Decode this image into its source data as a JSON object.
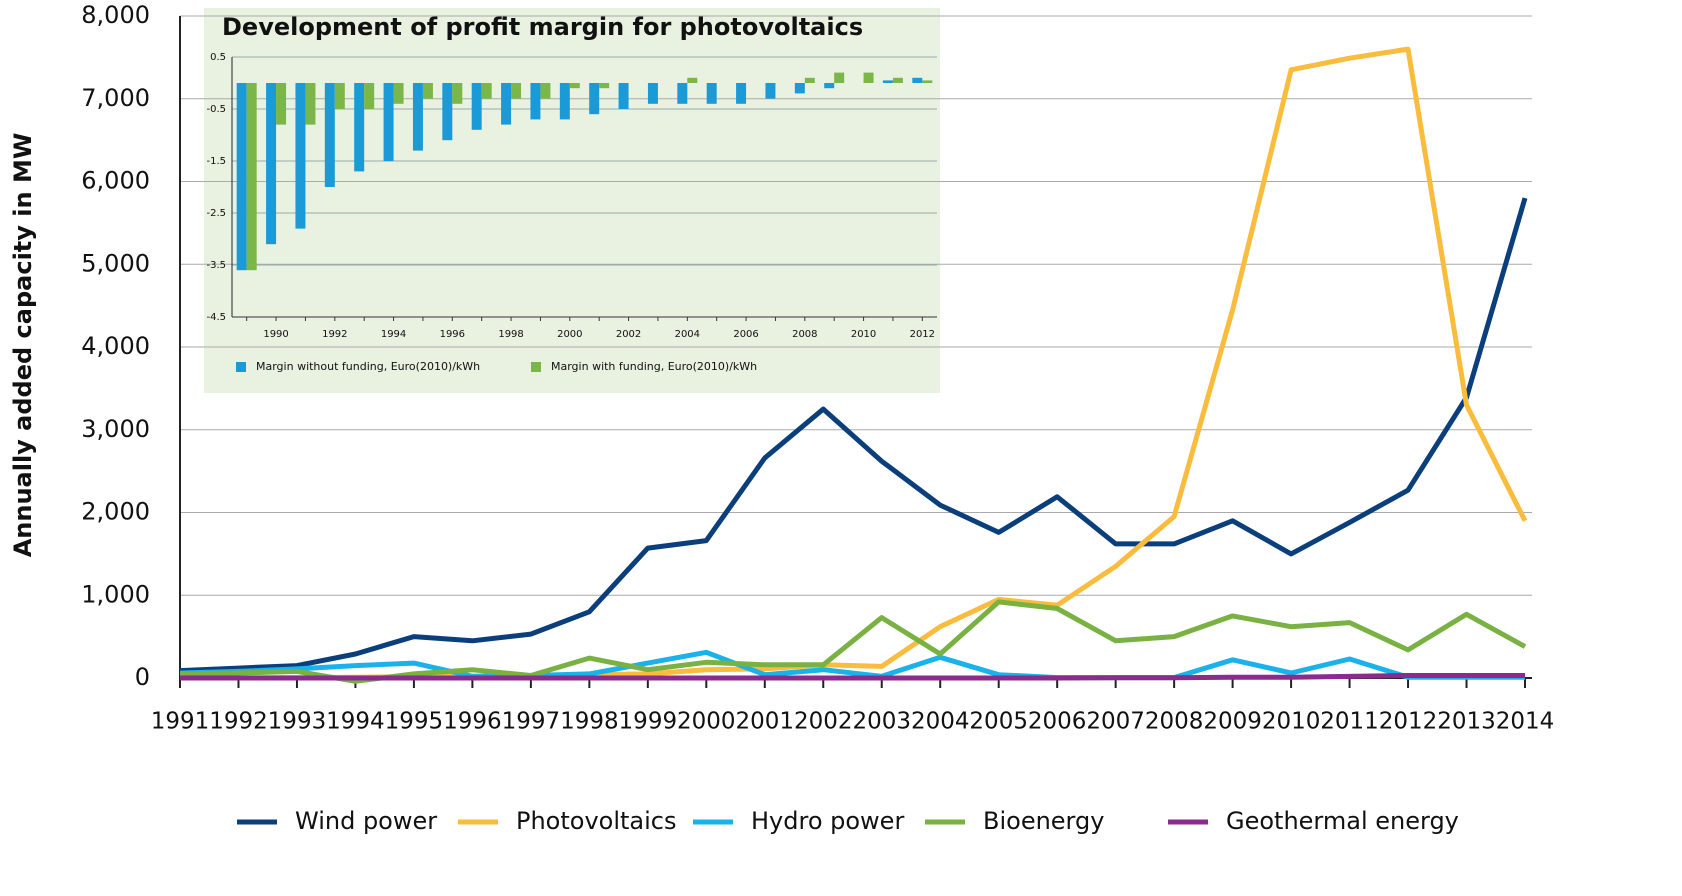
{
  "chart_data": [
    {
      "type": "line",
      "y_label": "Annually added capacity in MW",
      "categories": [
        "1991",
        "1992",
        "1993",
        "1994",
        "1995",
        "1996",
        "1997",
        "1998",
        "1999",
        "2000",
        "2001",
        "2002",
        "2003",
        "2004",
        "2005",
        "2006",
        "2007",
        "2008",
        "2009",
        "2010",
        "2011",
        "2012",
        "2013",
        "2014"
      ],
      "series": [
        {
          "name": "Wind power",
          "color": "#0b3f7c",
          "values": [
            90,
            120,
            150,
            290,
            500,
            450,
            530,
            800,
            1570,
            1660,
            2660,
            3250,
            2620,
            2090,
            1760,
            2190,
            1620,
            1620,
            1900,
            1500,
            1880,
            2270,
            3390,
            5800
          ]
        },
        {
          "name": "Photovoltaics",
          "color": "#f9bc3d",
          "values": [
            1,
            3,
            5,
            10,
            15,
            20,
            30,
            40,
            50,
            100,
            110,
            160,
            140,
            620,
            950,
            880,
            1350,
            1950,
            4450,
            7350,
            7490,
            7600,
            3300,
            1900
          ]
        },
        {
          "name": "Hydro power",
          "color": "#1ab2ea",
          "values": [
            60,
            80,
            110,
            150,
            180,
            20,
            30,
            50,
            180,
            310,
            40,
            100,
            20,
            250,
            40,
            5,
            5,
            5,
            220,
            60,
            230,
            10,
            10,
            10
          ]
        },
        {
          "name": "Bioenergy",
          "color": "#79b143",
          "values": [
            50,
            60,
            80,
            -40,
            50,
            100,
            30,
            240,
            100,
            190,
            160,
            160,
            730,
            290,
            920,
            840,
            450,
            500,
            750,
            620,
            670,
            340,
            770,
            380
          ]
        },
        {
          "name": "Geothermal energy",
          "color": "#8b2b8e",
          "values": [
            0,
            0,
            0,
            0,
            0,
            0,
            0,
            0,
            0,
            0,
            0,
            0,
            0,
            0,
            0,
            0,
            3,
            3,
            8,
            8,
            19,
            30,
            30,
            30
          ]
        }
      ],
      "ylim": [
        0,
        8000
      ],
      "yticks": [
        0,
        {
          "value": 1000,
          "label": "1,000"
        },
        {
          "value": 2000,
          "label": "2,000"
        },
        {
          "value": 3000,
          "label": "3,000"
        },
        {
          "value": 4000,
          "label": "4,000"
        },
        {
          "value": 5000,
          "label": "5,000"
        },
        {
          "value": 6000,
          "label": "6,000"
        },
        {
          "value": 7000,
          "label": "7,000"
        },
        {
          "value": 8000,
          "label": "8,000"
        }
      ],
      "grid": true,
      "legend": "bottom"
    },
    {
      "type": "bar",
      "title": "Development of profit margin for photovoltaics",
      "categories": [
        null,
        "1990",
        null,
        "1992",
        null,
        "1994",
        null,
        "1996",
        null,
        "1998",
        null,
        "2000",
        null,
        "2002",
        null,
        "2004",
        null,
        "2006",
        null,
        "2008",
        null,
        "2010",
        null,
        "2012"
      ],
      "series": [
        {
          "name": "Margin without funding, Euro(2010)/kWh",
          "color": "#1a9bd7",
          "values": [
            -3.6,
            -3.1,
            -2.8,
            -2.0,
            -1.7,
            -1.5,
            -1.3,
            -1.1,
            -0.9,
            -0.8,
            -0.7,
            -0.7,
            -0.6,
            -0.5,
            -0.4,
            -0.4,
            -0.4,
            -0.4,
            -0.3,
            -0.2,
            -0.1,
            0,
            0.05,
            0.1
          ]
        },
        {
          "name": "Margin with funding, Euro(2010)/kWh",
          "color": "#7ab648",
          "values": [
            -3.6,
            -0.8,
            -0.8,
            -0.5,
            -0.5,
            -0.4,
            -0.3,
            -0.4,
            -0.3,
            -0.3,
            -0.3,
            -0.1,
            -0.1,
            0,
            0,
            0.1,
            0,
            0,
            0,
            0.1,
            0.2,
            0.2,
            0.1,
            0.05
          ]
        }
      ],
      "ylim": [
        -4.5,
        0.5
      ],
      "yticks": [
        0.5,
        -0.5,
        -1.5,
        -2.5,
        -3.5,
        -4.5
      ],
      "grid": true,
      "legend": "bottom"
    }
  ]
}
